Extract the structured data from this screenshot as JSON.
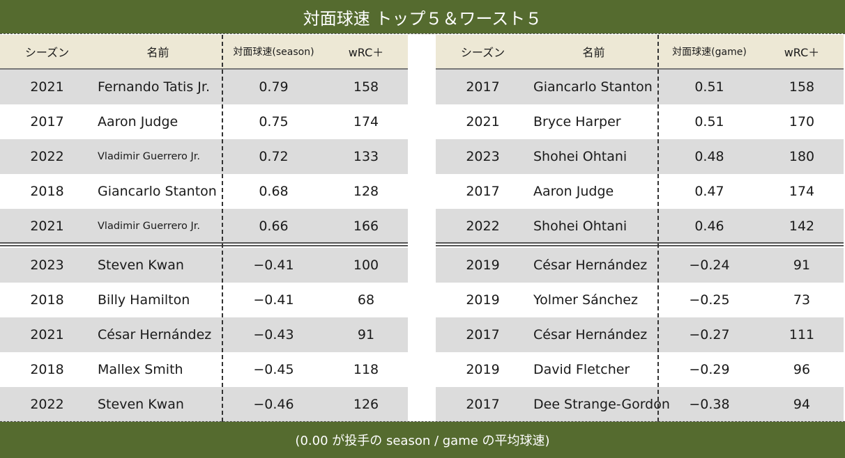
{
  "title": "対面球速 トップ５＆ワースト５",
  "footnote": "(0.00 が投手の season / game の平均球速)",
  "colors": {
    "banner": "#556b2f",
    "header_bg": "#ede8d5",
    "shaded_row": "#dcdcdc"
  },
  "chart_data": [
    {
      "type": "table",
      "columns": [
        "シーズン",
        "名前",
        "対面球速(season)",
        "wRC＋"
      ],
      "top5": [
        [
          "2021",
          "Fernando Tatis Jr.",
          "0.79",
          "158"
        ],
        [
          "2017",
          "Aaron Judge",
          "0.75",
          "174"
        ],
        [
          "2022",
          "Vladimir Guerrero Jr.",
          "0.72",
          "133"
        ],
        [
          "2018",
          "Giancarlo Stanton",
          "0.68",
          "128"
        ],
        [
          "2021",
          "Vladimir Guerrero Jr.",
          "0.66",
          "166"
        ]
      ],
      "worst5": [
        [
          "2023",
          "Steven Kwan",
          "−0.41",
          "100"
        ],
        [
          "2018",
          "Billy Hamilton",
          "−0.41",
          "68"
        ],
        [
          "2021",
          "César Hernández",
          "−0.43",
          "91"
        ],
        [
          "2018",
          "Mallex Smith",
          "−0.45",
          "118"
        ],
        [
          "2022",
          "Steven Kwan",
          "−0.46",
          "126"
        ]
      ]
    },
    {
      "type": "table",
      "columns": [
        "シーズン",
        "名前",
        "対面球速(game)",
        "wRC＋"
      ],
      "top5": [
        [
          "2017",
          "Giancarlo Stanton",
          "0.51",
          "158"
        ],
        [
          "2021",
          "Bryce Harper",
          "0.51",
          "170"
        ],
        [
          "2023",
          "Shohei Ohtani",
          "0.48",
          "180"
        ],
        [
          "2017",
          "Aaron Judge",
          "0.47",
          "174"
        ],
        [
          "2022",
          "Shohei Ohtani",
          "0.46",
          "142"
        ]
      ],
      "worst5": [
        [
          "2019",
          "César Hernández",
          "−0.24",
          "91"
        ],
        [
          "2019",
          "Yolmer Sánchez",
          "−0.25",
          "73"
        ],
        [
          "2017",
          "César Hernández",
          "−0.27",
          "111"
        ],
        [
          "2019",
          "David Fletcher",
          "−0.29",
          "96"
        ],
        [
          "2017",
          "Dee Strange-Gordon",
          "−0.38",
          "94"
        ]
      ]
    }
  ]
}
